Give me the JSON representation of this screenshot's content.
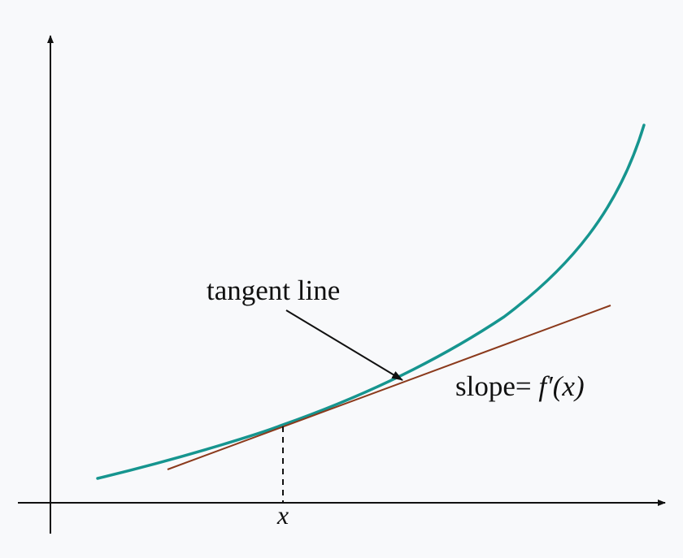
{
  "labels": {
    "tangent_line": "tangent line",
    "slope_prefix": "slope= ",
    "slope_expr": "f′(x)",
    "x_tick": "x"
  },
  "colors": {
    "background": "#f8f9fb",
    "axes": "#111111",
    "curve": "#16958f",
    "tangent": "#8b3a1c"
  }
}
